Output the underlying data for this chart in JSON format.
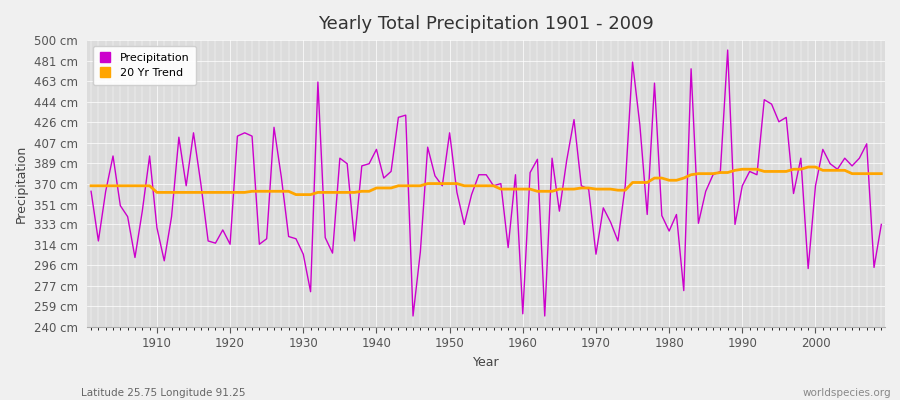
{
  "title": "Yearly Total Precipitation 1901 - 2009",
  "xlabel": "Year",
  "ylabel": "Precipitation",
  "footnote_left": "Latitude 25.75 Longitude 91.25",
  "footnote_right": "worldspecies.org",
  "fig_bg_color": "#f0f0f0",
  "plot_bg_color": "#dcdcdc",
  "precip_color": "#cc00cc",
  "trend_color": "#FFA500",
  "ylim": [
    240,
    500
  ],
  "yticks": [
    240,
    259,
    277,
    296,
    314,
    333,
    351,
    370,
    389,
    407,
    426,
    444,
    463,
    481,
    500
  ],
  "xticks": [
    1910,
    1920,
    1930,
    1940,
    1950,
    1960,
    1970,
    1980,
    1990,
    2000
  ],
  "years": [
    1901,
    1902,
    1903,
    1904,
    1905,
    1906,
    1907,
    1908,
    1909,
    1910,
    1911,
    1912,
    1913,
    1914,
    1915,
    1916,
    1917,
    1918,
    1919,
    1920,
    1921,
    1922,
    1923,
    1924,
    1925,
    1926,
    1927,
    1928,
    1929,
    1930,
    1931,
    1932,
    1933,
    1934,
    1935,
    1936,
    1937,
    1938,
    1939,
    1940,
    1941,
    1942,
    1943,
    1944,
    1945,
    1946,
    1947,
    1948,
    1949,
    1950,
    1951,
    1952,
    1953,
    1954,
    1955,
    1956,
    1957,
    1958,
    1959,
    1960,
    1961,
    1962,
    1963,
    1964,
    1965,
    1966,
    1967,
    1968,
    1969,
    1970,
    1971,
    1972,
    1973,
    1974,
    1975,
    1976,
    1977,
    1978,
    1979,
    1980,
    1981,
    1982,
    1983,
    1984,
    1985,
    1986,
    1987,
    1988,
    1989,
    1990,
    1991,
    1992,
    1993,
    1994,
    1995,
    1996,
    1997,
    1998,
    1999,
    2000,
    2001,
    2002,
    2003,
    2004,
    2005,
    2006,
    2007,
    2008,
    2009
  ],
  "precip": [
    363,
    318,
    363,
    395,
    350,
    340,
    303,
    345,
    395,
    330,
    300,
    340,
    412,
    368,
    416,
    370,
    318,
    316,
    328,
    315,
    413,
    416,
    413,
    315,
    320,
    421,
    376,
    322,
    320,
    306,
    272,
    462,
    321,
    307,
    393,
    388,
    318,
    386,
    388,
    401,
    375,
    381,
    430,
    432,
    250,
    308,
    403,
    377,
    368,
    416,
    362,
    333,
    360,
    378,
    378,
    368,
    370,
    312,
    378,
    252,
    380,
    392,
    250,
    393,
    345,
    391,
    428,
    368,
    365,
    306,
    348,
    335,
    318,
    368,
    480,
    423,
    342,
    461,
    341,
    327,
    342,
    273,
    474,
    334,
    363,
    378,
    381,
    491,
    333,
    368,
    381,
    378,
    446,
    442,
    426,
    430,
    361,
    393,
    293,
    368,
    401,
    388,
    383,
    393,
    386,
    393,
    406,
    294,
    333
  ],
  "trend": [
    368,
    368,
    368,
    368,
    368,
    368,
    368,
    368,
    368,
    362,
    362,
    362,
    362,
    362,
    362,
    362,
    362,
    362,
    362,
    362,
    362,
    362,
    363,
    363,
    363,
    363,
    363,
    363,
    360,
    360,
    360,
    362,
    362,
    362,
    362,
    362,
    362,
    363,
    363,
    366,
    366,
    366,
    368,
    368,
    368,
    368,
    370,
    370,
    370,
    370,
    370,
    368,
    368,
    368,
    368,
    368,
    365,
    365,
    365,
    365,
    365,
    363,
    363,
    363,
    365,
    365,
    365,
    366,
    366,
    365,
    365,
    365,
    364,
    364,
    371,
    371,
    371,
    375,
    375,
    373,
    373,
    375,
    378,
    379,
    379,
    379,
    380,
    380,
    382,
    383,
    383,
    383,
    381,
    381,
    381,
    381,
    383,
    383,
    385,
    385,
    382,
    382,
    382,
    382,
    379,
    379,
    379,
    379,
    379
  ]
}
